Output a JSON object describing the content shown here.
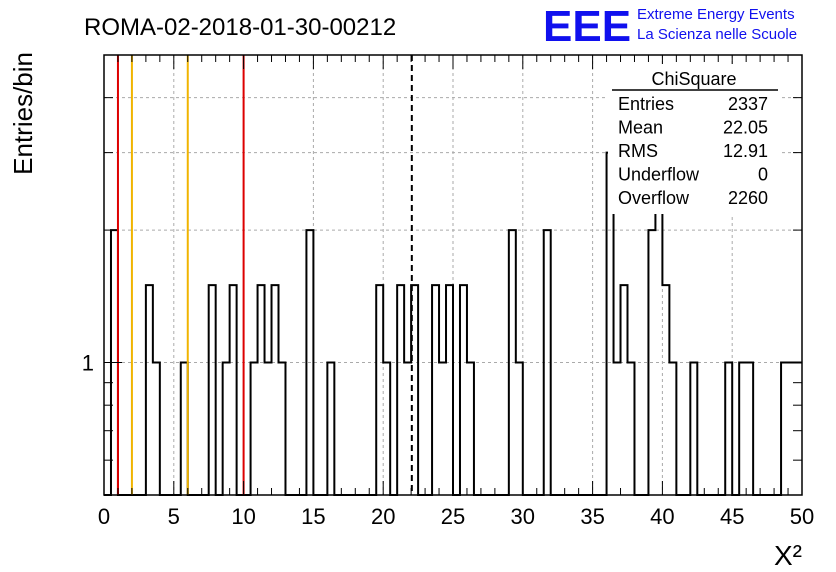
{
  "title": "ROMA-02-2018-01-30-00212",
  "logo": {
    "mark": "EEE",
    "line1": "Extreme Energy Events",
    "line2": "La Scienza nelle Scuole",
    "color": "#1010ee"
  },
  "stats": {
    "name": "ChiSquare",
    "rows": [
      {
        "label": "Entries",
        "value": "2337"
      },
      {
        "label": "Mean",
        "value": "22.05"
      },
      {
        "label": "RMS",
        "value": "12.91"
      },
      {
        "label": "Underflow",
        "value": "0"
      },
      {
        "label": "Overflow",
        "value": "2260"
      }
    ]
  },
  "chart_data": {
    "type": "bar",
    "style": "step-histogram",
    "title": "ROMA-02-2018-01-30-00212",
    "xlabel": "X²",
    "ylabel": "Entries/bin",
    "xlim": [
      0,
      50
    ],
    "ylim": [
      0.5,
      5
    ],
    "y_scale": "log",
    "grid": true,
    "bin_width": 0.5,
    "x_ticks": [
      "0",
      "5",
      "10",
      "15",
      "20",
      "25",
      "30",
      "35",
      "40",
      "45",
      "50"
    ],
    "y_tick_labels": [
      {
        "value": 1,
        "label": "1"
      }
    ],
    "bins": [
      {
        "x": 0.5,
        "value": 2
      },
      {
        "x": 3.0,
        "value": 1.5
      },
      {
        "x": 3.5,
        "value": 1
      },
      {
        "x": 5.5,
        "value": 1
      },
      {
        "x": 7.5,
        "value": 1.5
      },
      {
        "x": 8.5,
        "value": 1
      },
      {
        "x": 9.0,
        "value": 1.5
      },
      {
        "x": 10.5,
        "value": 1
      },
      {
        "x": 11.0,
        "value": 1.5
      },
      {
        "x": 11.5,
        "value": 1
      },
      {
        "x": 12.0,
        "value": 1.5
      },
      {
        "x": 12.5,
        "value": 1
      },
      {
        "x": 14.5,
        "value": 2
      },
      {
        "x": 16.0,
        "value": 1
      },
      {
        "x": 19.5,
        "value": 1.5
      },
      {
        "x": 20.0,
        "value": 1
      },
      {
        "x": 21.0,
        "value": 1.5
      },
      {
        "x": 21.5,
        "value": 1
      },
      {
        "x": 22.0,
        "value": 1.5
      },
      {
        "x": 23.5,
        "value": 1.5
      },
      {
        "x": 24.0,
        "value": 1
      },
      {
        "x": 24.5,
        "value": 1.5
      },
      {
        "x": 25.5,
        "value": 1.5
      },
      {
        "x": 26.0,
        "value": 1
      },
      {
        "x": 29.0,
        "value": 2
      },
      {
        "x": 29.5,
        "value": 1
      },
      {
        "x": 31.5,
        "value": 2
      },
      {
        "x": 36.0,
        "value": 3
      },
      {
        "x": 36.5,
        "value": 1
      },
      {
        "x": 37.0,
        "value": 1.5
      },
      {
        "x": 37.5,
        "value": 1
      },
      {
        "x": 39.0,
        "value": 2
      },
      {
        "x": 39.5,
        "value": 3
      },
      {
        "x": 40.0,
        "value": 1.5
      },
      {
        "x": 40.5,
        "value": 1
      },
      {
        "x": 42.0,
        "value": 1
      },
      {
        "x": 44.5,
        "value": 1
      },
      {
        "x": 45.5,
        "value": 1
      },
      {
        "x": 46.0,
        "value": 1
      },
      {
        "x": 48.5,
        "value": 1
      },
      {
        "x": 49.0,
        "value": 1
      },
      {
        "x": 49.5,
        "value": 1
      }
    ],
    "reference_lines": [
      {
        "x": 1.0,
        "color": "#dd0000",
        "style": "solid"
      },
      {
        "x": 2.0,
        "color": "#f0b400",
        "style": "solid"
      },
      {
        "x": 6.0,
        "color": "#f0b400",
        "style": "solid"
      },
      {
        "x": 10.0,
        "color": "#dd0000",
        "style": "solid"
      },
      {
        "x": 22.05,
        "color": "#000000",
        "style": "dashed"
      }
    ]
  }
}
